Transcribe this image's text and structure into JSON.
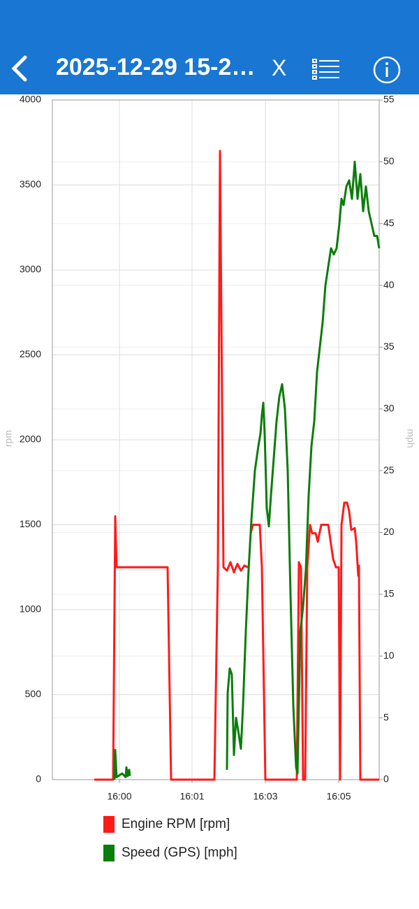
{
  "header": {
    "title": "2025-12-29 15-2…",
    "close": "X"
  },
  "chart_data": {
    "type": "line",
    "y_label": "rpm",
    "y2_label": "mph",
    "xlim": [
      -96,
      372
    ],
    "xticks": [
      {
        "value": 0,
        "label": "16:00"
      },
      {
        "value": 104,
        "label": "16:01"
      },
      {
        "value": 209,
        "label": "16:03"
      },
      {
        "value": 314,
        "label": "16:05"
      }
    ],
    "ylim": [
      0,
      4000
    ],
    "yticks": [
      0,
      500,
      1000,
      1500,
      2000,
      2500,
      3000,
      3500,
      4000
    ],
    "y2lim": [
      0,
      55
    ],
    "y2ticks": [
      0,
      5,
      10,
      15,
      20,
      25,
      30,
      35,
      40,
      45,
      50,
      55
    ],
    "grid": true,
    "series": [
      {
        "name": "Engine RPM [rpm]",
        "color": "#ff1a1a",
        "x": [
          -36,
          -9,
          -6,
          -4,
          69,
          74,
          136,
          141,
          144,
          149,
          154,
          159,
          164,
          169,
          174,
          179,
          184,
          187,
          188,
          191,
          201,
          204,
          209,
          254,
          257,
          260,
          263,
          266,
          269,
          273,
          276,
          281,
          284,
          289,
          299,
          306,
          310,
          314,
          316,
          318,
          322,
          326,
          329,
          332,
          337,
          339,
          342,
          343,
          345,
          372
        ],
        "values": [
          0,
          0,
          1550,
          1250,
          1250,
          0,
          0,
          1250,
          3700,
          1250,
          1230,
          1280,
          1220,
          1270,
          1230,
          1260,
          1250,
          null,
          1450,
          1500,
          1500,
          1250,
          0,
          0,
          1280,
          1250,
          0,
          0,
          1250,
          1500,
          1450,
          1450,
          1400,
          1500,
          1500,
          1300,
          1250,
          1250,
          0,
          1500,
          1630,
          1630,
          1580,
          1470,
          1480,
          1400,
          1200,
          1260,
          0,
          0
        ]
      },
      {
        "name": "Speed (GPS) [mph]",
        "color": "#0a7d0a",
        "axis": "y2",
        "x": [
          -7,
          -6,
          -4,
          4,
          9,
          10,
          12,
          14,
          15,
          100,
          154,
          155,
          158,
          161,
          164,
          167,
          170,
          174,
          177,
          181,
          185,
          189,
          194,
          199,
          202,
          204,
          206,
          208,
          211,
          214,
          217,
          221,
          225,
          229,
          233,
          237,
          241,
          245,
          249,
          253,
          255,
          257,
          259,
          263,
          267,
          271,
          275,
          279,
          283,
          287,
          291,
          295,
          299,
          303,
          307,
          311,
          315,
          318,
          321,
          325,
          329,
          333,
          337,
          341,
          345,
          349,
          353,
          357,
          361,
          365,
          369,
          372
        ],
        "values": [
          0,
          2.4,
          0.2,
          0.5,
          0.2,
          1,
          0.3,
          0.8,
          0.3,
          null,
          0.8,
          7,
          9,
          8.5,
          2,
          5,
          4,
          2.5,
          6,
          12,
          17,
          21,
          25,
          27,
          28,
          29.5,
          30.5,
          28,
          22,
          20.5,
          23,
          26,
          29,
          31,
          32,
          30,
          25,
          15,
          6,
          1,
          0.5,
          6,
          12,
          14,
          17,
          23,
          27,
          29,
          33,
          35,
          37,
          40,
          41.5,
          43,
          42.5,
          43,
          45,
          47,
          46.5,
          48,
          48.5,
          47,
          50,
          47,
          49,
          46,
          48,
          46,
          45,
          44,
          44,
          43
        ]
      }
    ]
  }
}
